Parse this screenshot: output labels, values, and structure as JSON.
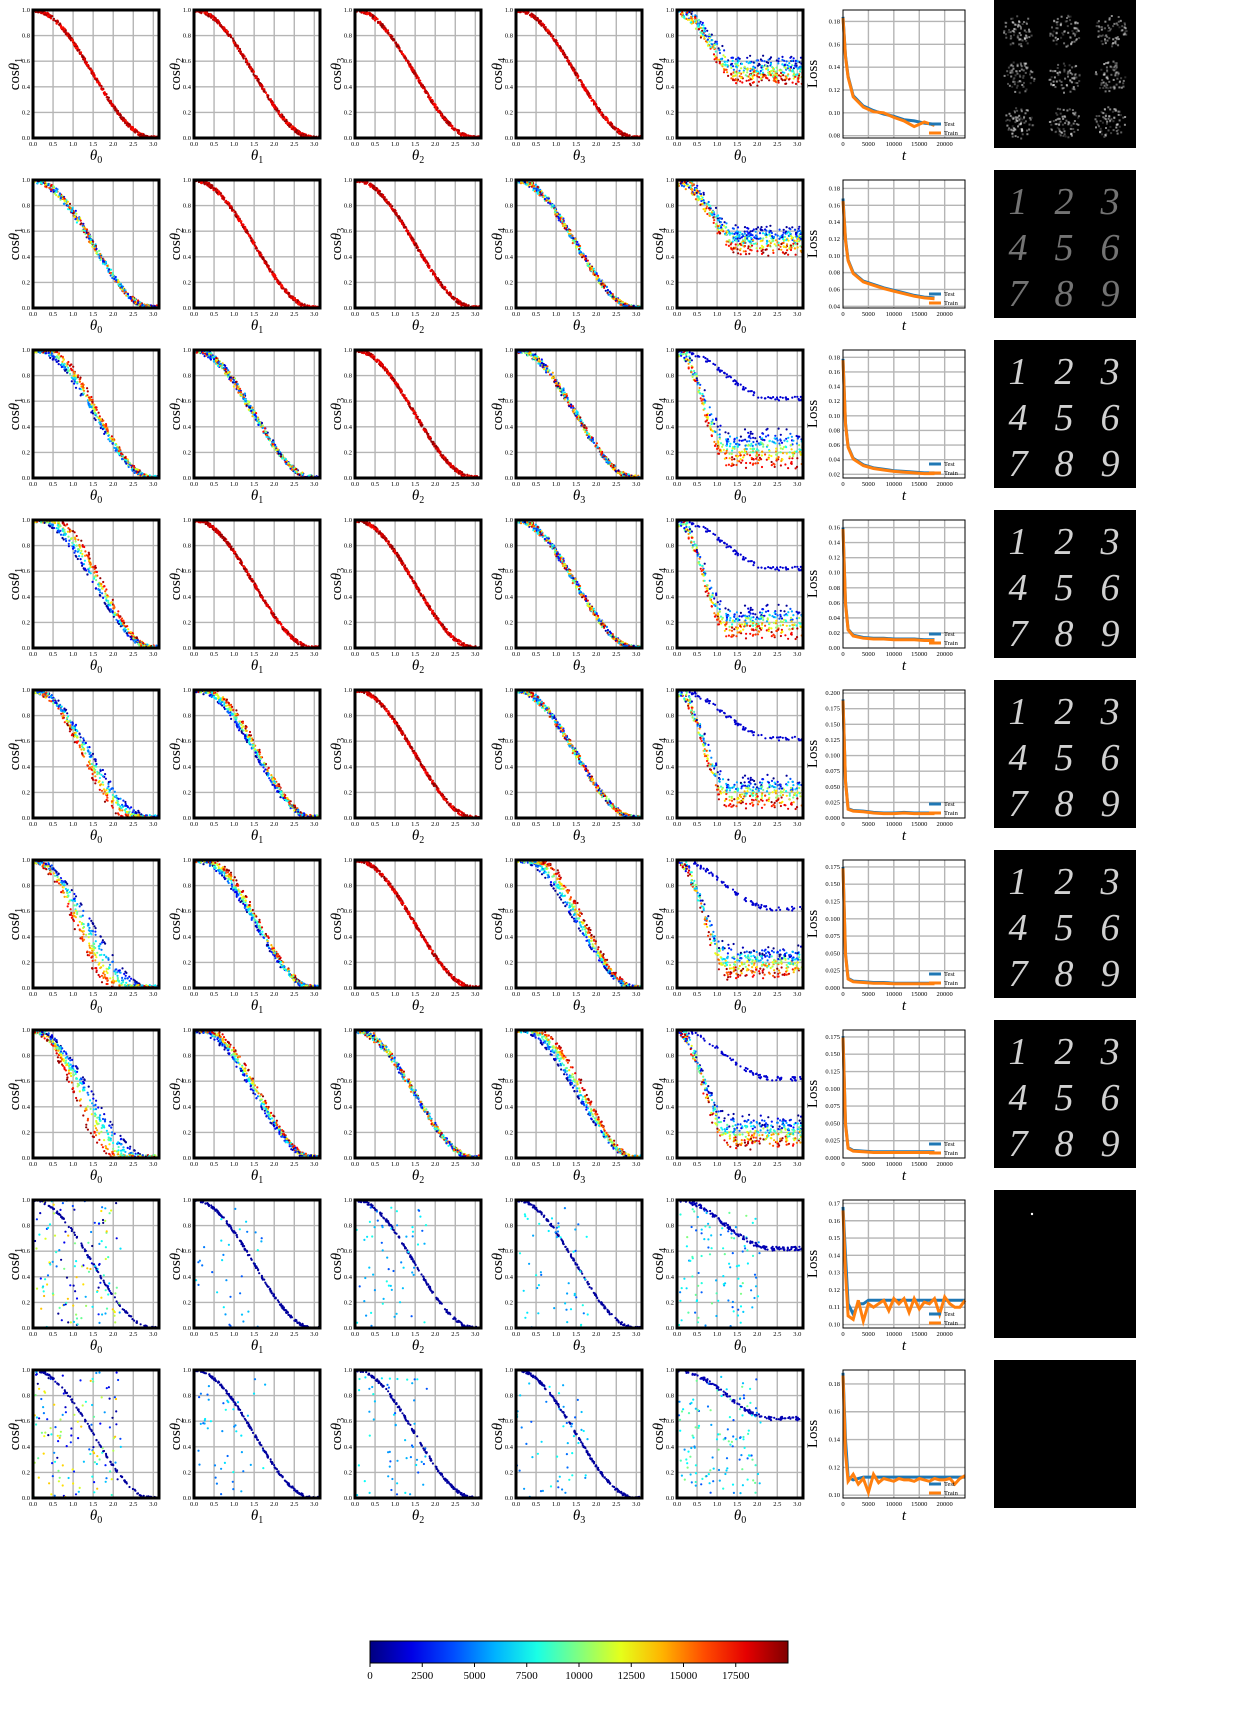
{
  "figure": {
    "columns": [
      {
        "ylabel_base": "cos",
        "ylabel_sym": "θ",
        "ylabel_sub": "1",
        "xlabel_sym": "θ",
        "xlabel_sub": "0"
      },
      {
        "ylabel_base": "cos",
        "ylabel_sym": "θ",
        "ylabel_sub": "2",
        "xlabel_sym": "θ",
        "xlabel_sub": "1"
      },
      {
        "ylabel_base": "cos",
        "ylabel_sym": "θ",
        "ylabel_sub": "3",
        "xlabel_sym": "θ",
        "xlabel_sub": "2"
      },
      {
        "ylabel_base": "cos",
        "ylabel_sym": "θ",
        "ylabel_sub": "4",
        "xlabel_sym": "θ",
        "xlabel_sub": "3"
      },
      {
        "ylabel_base": "cos",
        "ylabel_sym": "θ",
        "ylabel_sub": "4",
        "xlabel_sym": "θ",
        "xlabel_sub": "0"
      }
    ],
    "loss_ylabel": "Loss",
    "loss_xlabel": "t",
    "legend": [
      "Test",
      "Train"
    ],
    "legend_colors": [
      "#1f77b4",
      "#ff7f0e"
    ],
    "colorbar_ticks": [
      "0",
      "2500",
      "5000",
      "7500",
      "10000",
      "12500",
      "15000",
      "17500"
    ],
    "colormap": "jet",
    "image_panels": [
      "noisy-digits",
      "faint-digits",
      "digits",
      "digits",
      "digits",
      "digits",
      "digits",
      "blank",
      "blank"
    ]
  },
  "chart_data": {
    "type": "scatter",
    "description_of_panels": "9 rows x 5 scatter panels of cos(angle) vs angle, colored by training step (0-20000), plus one loss-curve panel per row.",
    "scatter_x_ticks": [
      "0.0",
      "0.5",
      "1.0",
      "1.5",
      "2.0",
      "2.5",
      "3.0"
    ],
    "scatter_y_ticks": [
      "0.0",
      "0.2",
      "0.4",
      "0.6",
      "0.8",
      "1.0"
    ],
    "scatter_xlim": [
      0,
      3.1416
    ],
    "scatter_ylim": [
      0,
      1.0
    ],
    "loss_x_ticks": [
      "0",
      "5000",
      "10000",
      "15000",
      "20000"
    ],
    "loss_xlim": [
      0,
      24000
    ],
    "loss_panels": [
      {
        "yticks": [
          "0.08",
          "0.10",
          "0.12",
          "0.14",
          "0.16",
          "0.18"
        ],
        "ylim": [
          0.078,
          0.19
        ],
        "series": [
          {
            "name": "Test",
            "t": [
              0,
              500,
              1000,
              2000,
              4000,
              6000,
              8000,
              10000,
              12000,
              14000,
              16000,
              18000
            ],
            "values": [
              0.184,
              0.15,
              0.132,
              0.115,
              0.106,
              0.102,
              0.099,
              0.097,
              0.094,
              0.093,
              0.091,
              0.09
            ]
          },
          {
            "name": "Train",
            "t": [
              0,
              500,
              1000,
              2000,
              4000,
              6000,
              8000,
              10000,
              12000,
              14000,
              16000,
              18000
            ],
            "values": [
              0.183,
              0.149,
              0.131,
              0.114,
              0.105,
              0.101,
              0.1,
              0.096,
              0.093,
              0.088,
              0.092,
              0.089
            ]
          }
        ]
      },
      {
        "yticks": [
          "0.04",
          "0.06",
          "0.08",
          "0.10",
          "0.12",
          "0.14",
          "0.16",
          "0.18"
        ],
        "ylim": [
          0.038,
          0.19
        ],
        "series": [
          {
            "name": "Test",
            "t": [
              0,
              500,
              1000,
              2000,
              4000,
              6000,
              8000,
              10000,
              12000,
              14000,
              16000,
              18000
            ],
            "values": [
              0.168,
              0.12,
              0.095,
              0.08,
              0.07,
              0.066,
              0.062,
              0.059,
              0.056,
              0.053,
              0.051,
              0.05
            ]
          },
          {
            "name": "Train",
            "t": [
              0,
              500,
              1000,
              2000,
              4000,
              6000,
              8000,
              10000,
              12000,
              14000,
              16000,
              18000
            ],
            "values": [
              0.165,
              0.118,
              0.094,
              0.079,
              0.069,
              0.065,
              0.061,
              0.058,
              0.055,
              0.052,
              0.05,
              0.049
            ]
          }
        ]
      },
      {
        "yticks": [
          "0.02",
          "0.04",
          "0.06",
          "0.08",
          "0.10",
          "0.12",
          "0.14",
          "0.16",
          "0.18"
        ],
        "ylim": [
          0.015,
          0.19
        ],
        "series": [
          {
            "name": "Test",
            "t": [
              0,
              500,
              1000,
              2000,
              4000,
              6000,
              8000,
              10000,
              12000,
              14000,
              16000,
              18000
            ],
            "values": [
              0.178,
              0.09,
              0.058,
              0.042,
              0.033,
              0.029,
              0.027,
              0.025,
              0.024,
              0.023,
              0.022,
              0.022
            ]
          },
          {
            "name": "Train",
            "t": [
              0,
              500,
              1000,
              2000,
              4000,
              6000,
              8000,
              10000,
              12000,
              14000,
              16000,
              18000
            ],
            "values": [
              0.176,
              0.088,
              0.057,
              0.041,
              0.032,
              0.028,
              0.026,
              0.024,
              0.023,
              0.022,
              0.021,
              0.021
            ]
          }
        ]
      },
      {
        "yticks": [
          "0.00",
          "0.02",
          "0.04",
          "0.06",
          "0.08",
          "0.10",
          "0.12",
          "0.14",
          "0.16"
        ],
        "ylim": [
          0.0,
          0.17
        ],
        "series": [
          {
            "name": "Test",
            "t": [
              0,
              500,
              1000,
              2000,
              4000,
              6000,
              8000,
              10000,
              12000,
              14000,
              16000,
              18000
            ],
            "values": [
              0.16,
              0.06,
              0.025,
              0.017,
              0.014,
              0.013,
              0.013,
              0.012,
              0.012,
              0.012,
              0.011,
              0.011
            ]
          },
          {
            "name": "Train",
            "t": [
              0,
              500,
              1000,
              2000,
              4000,
              6000,
              8000,
              10000,
              12000,
              14000,
              16000,
              18000
            ],
            "values": [
              0.158,
              0.058,
              0.024,
              0.016,
              0.013,
              0.012,
              0.012,
              0.011,
              0.011,
              0.011,
              0.01,
              0.01
            ]
          }
        ]
      },
      {
        "yticks": [
          "0.000",
          "0.025",
          "0.050",
          "0.075",
          "0.100",
          "0.125",
          "0.150",
          "0.175",
          "0.200"
        ],
        "ylim": [
          0.0,
          0.205
        ],
        "series": [
          {
            "name": "Test",
            "t": [
              0,
              500,
              1000,
              2000,
              4000,
              6000,
              8000,
              10000,
              12000,
              14000,
              16000,
              18000
            ],
            "values": [
              0.19,
              0.06,
              0.015,
              0.012,
              0.011,
              0.009,
              0.008,
              0.008,
              0.009,
              0.008,
              0.008,
              0.008
            ]
          },
          {
            "name": "Train",
            "t": [
              0,
              500,
              1000,
              2000,
              4000,
              6000,
              8000,
              10000,
              12000,
              14000,
              16000,
              18000
            ],
            "values": [
              0.188,
              0.058,
              0.014,
              0.011,
              0.01,
              0.008,
              0.007,
              0.007,
              0.008,
              0.007,
              0.007,
              0.007
            ]
          }
        ]
      },
      {
        "yticks": [
          "0.000",
          "0.025",
          "0.050",
          "0.075",
          "0.100",
          "0.125",
          "0.150",
          "0.175"
        ],
        "ylim": [
          0.0,
          0.185
        ],
        "series": [
          {
            "name": "Test",
            "t": [
              0,
              500,
              1000,
              2000,
              4000,
              6000,
              8000,
              10000,
              12000,
              14000,
              16000,
              18000
            ],
            "values": [
              0.175,
              0.05,
              0.014,
              0.01,
              0.009,
              0.008,
              0.008,
              0.007,
              0.007,
              0.007,
              0.007,
              0.007
            ]
          },
          {
            "name": "Train",
            "t": [
              0,
              500,
              1000,
              2000,
              4000,
              6000,
              8000,
              10000,
              12000,
              14000,
              16000,
              18000
            ],
            "values": [
              0.173,
              0.048,
              0.013,
              0.009,
              0.008,
              0.007,
              0.007,
              0.006,
              0.006,
              0.006,
              0.006,
              0.006
            ]
          }
        ]
      },
      {
        "yticks": [
          "0.000",
          "0.025",
          "0.050",
          "0.075",
          "0.100",
          "0.125",
          "0.150",
          "0.175"
        ],
        "ylim": [
          0.0,
          0.185
        ],
        "series": [
          {
            "name": "Test",
            "t": [
              0,
              500,
              1000,
              2000,
              4000,
              6000,
              8000,
              10000,
              12000,
              14000,
              16000,
              18000
            ],
            "values": [
              0.176,
              0.05,
              0.015,
              0.011,
              0.01,
              0.009,
              0.009,
              0.009,
              0.009,
              0.009,
              0.009,
              0.009
            ]
          },
          {
            "name": "Train",
            "t": [
              0,
              500,
              1000,
              2000,
              4000,
              6000,
              8000,
              10000,
              12000,
              14000,
              16000,
              18000
            ],
            "values": [
              0.174,
              0.048,
              0.014,
              0.01,
              0.009,
              0.008,
              0.008,
              0.008,
              0.008,
              0.008,
              0.008,
              0.008
            ]
          }
        ]
      },
      {
        "yticks": [
          "0.10",
          "0.11",
          "0.12",
          "0.13",
          "0.14",
          "0.15",
          "0.16",
          "0.17"
        ],
        "ylim": [
          0.098,
          0.172
        ],
        "series": [
          {
            "name": "Test",
            "t": [
              0,
              500,
              1000,
              2000,
              3000,
              4000,
              5000,
              6000,
              8000,
              10000,
              12000,
              14000,
              16000,
              18000,
              20000,
              22000,
              24000
            ],
            "values": [
              0.168,
              0.14,
              0.112,
              0.106,
              0.112,
              0.112,
              0.114,
              0.114,
              0.114,
              0.114,
              0.114,
              0.114,
              0.114,
              0.114,
              0.114,
              0.114,
              0.114
            ]
          },
          {
            "name": "Train",
            "t": [
              0,
              500,
              1000,
              2000,
              3000,
              4000,
              5000,
              6000,
              8000,
              9000,
              10000,
              11000,
              12000,
              13000,
              14000,
              15000,
              16000,
              17000,
              18000,
              19000,
              20000,
              21000,
              22000,
              23000,
              24000
            ],
            "values": [
              0.166,
              0.13,
              0.105,
              0.103,
              0.114,
              0.102,
              0.112,
              0.11,
              0.114,
              0.108,
              0.115,
              0.112,
              0.115,
              0.107,
              0.115,
              0.109,
              0.113,
              0.112,
              0.115,
              0.106,
              0.116,
              0.112,
              0.11,
              0.11,
              0.114
            ]
          }
        ]
      },
      {
        "yticks": [
          "0.10",
          "0.12",
          "0.14",
          "0.16",
          "0.18"
        ],
        "ylim": [
          0.098,
          0.19
        ],
        "series": [
          {
            "name": "Test",
            "t": [
              0,
              500,
              1000,
              2000,
              4000,
              6000,
              8000,
              10000,
              12000,
              14000,
              16000,
              18000,
              20000,
              22000,
              24000
            ],
            "values": [
              0.188,
              0.14,
              0.113,
              0.111,
              0.113,
              0.113,
              0.113,
              0.113,
              0.113,
              0.113,
              0.113,
              0.113,
              0.113,
              0.113,
              0.113
            ]
          },
          {
            "name": "Train",
            "t": [
              0,
              500,
              1000,
              2000,
              3000,
              4000,
              5000,
              6000,
              7000,
              8000,
              9000,
              10000,
              11000,
              12000,
              13000,
              14000,
              15000,
              16000,
              17000,
              18000,
              19000,
              20000,
              21000,
              22000,
              23000,
              24000
            ],
            "values": [
              0.186,
              0.13,
              0.11,
              0.115,
              0.108,
              0.112,
              0.102,
              0.115,
              0.109,
              0.112,
              0.111,
              0.11,
              0.112,
              0.111,
              0.111,
              0.11,
              0.112,
              0.111,
              0.11,
              0.112,
              0.111,
              0.111,
              0.112,
              0.108,
              0.112,
              0.114
            ]
          }
        ]
      }
    ]
  }
}
